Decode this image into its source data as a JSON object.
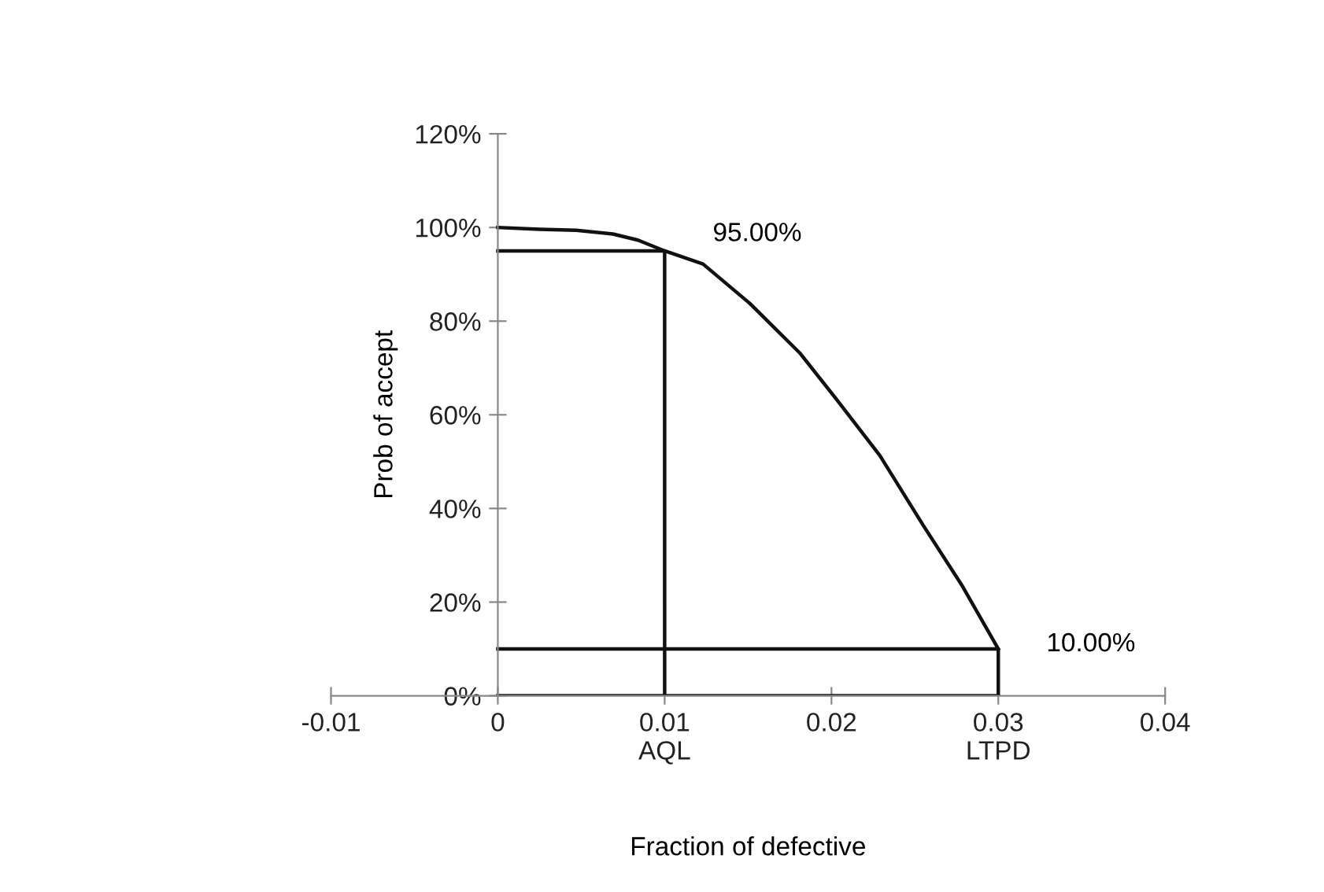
{
  "chart_data": {
    "type": "line",
    "xlabel": "Fraction of defective",
    "ylabel": "Prob of accept",
    "xlim": [
      -0.01,
      0.04
    ],
    "ylim": [
      0,
      120
    ],
    "xticks": [
      -0.01,
      0,
      {
        "value": 0.01,
        "label": "0.01\nAQL"
      },
      0.02,
      {
        "value": 0.03,
        "label": "0.03\nLTPD"
      },
      0.04
    ],
    "yticks": [
      {
        "value": 0,
        "label": "0%"
      },
      {
        "value": 20,
        "label": "20%"
      },
      {
        "value": 40,
        "label": "40%"
      },
      {
        "value": 60,
        "label": "60%"
      },
      {
        "value": 80,
        "label": "80%"
      },
      {
        "value": 100,
        "label": "100%"
      },
      {
        "value": 120,
        "label": "120%"
      }
    ],
    "grid": false,
    "legend": false,
    "marker": "none",
    "line_style": "solid",
    "series": [
      {
        "color": "#111111",
        "x": [
          0,
          0.0025,
          0.0047,
          0.0069,
          0.0084,
          0.01,
          0.0123,
          0.0151,
          0.0181,
          0.0203,
          0.0229,
          0.0255,
          0.0278,
          0.03
        ],
        "values": [
          100,
          99.6,
          99.4,
          98.6,
          97.3,
          95,
          92.2,
          83.8,
          73.2,
          63.3,
          51.3,
          36.4,
          23.7,
          10
        ]
      },
      {
        "color": "#111111",
        "x": [
          0,
          0.01,
          0.01
        ],
        "values": [
          95,
          95,
          0
        ]
      },
      {
        "color": "#111111",
        "x": [
          0,
          0.03,
          0.03
        ],
        "values": [
          10,
          10,
          0
        ]
      },
      {
        "color": "#111111",
        "x": [
          0,
          0.03
        ],
        "values": [
          0,
          0
        ]
      }
    ],
    "annotations": [
      {
        "text": "95.00%",
        "x": 0.01,
        "y": 95
      },
      {
        "text": "10.00%",
        "x": 0.03,
        "y": 10
      }
    ]
  }
}
